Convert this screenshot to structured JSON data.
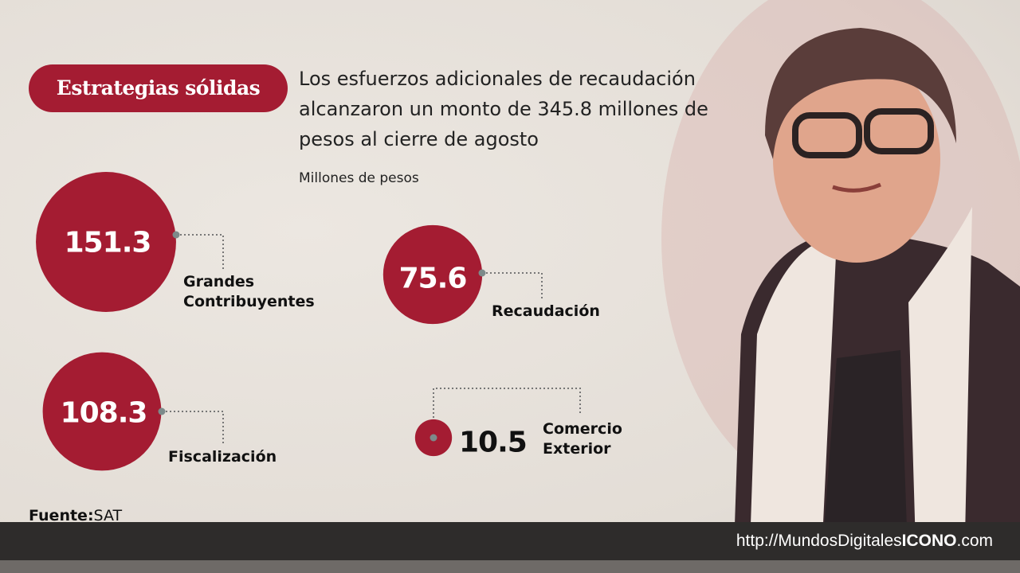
{
  "header": {
    "badge": "Estrategias sólidas",
    "subtitle": "Los esfuerzos adicionales de recaudación alcanzaron un monto de 345.8 millones de pesos al cierre de agosto",
    "unit": "Millones de pesos"
  },
  "chart_data": {
    "type": "bubble",
    "ylabel": "Millones de pesos",
    "categories": [
      "Grandes Contribuyentes",
      "Recaudación",
      "Fiscalización",
      "Comercio Exterior"
    ],
    "values": [
      151.3,
      75.6,
      108.3,
      10.5
    ],
    "value_labels": [
      "151.3",
      "75.6",
      "108.3",
      "10.5"
    ],
    "color": "#a41c32"
  },
  "source": {
    "label": "Fuente:",
    "value": "SAT"
  },
  "footer": {
    "url_prefix": "http://MundosDigitales",
    "url_brand": "ICONO",
    "url_suffix": ".com"
  }
}
